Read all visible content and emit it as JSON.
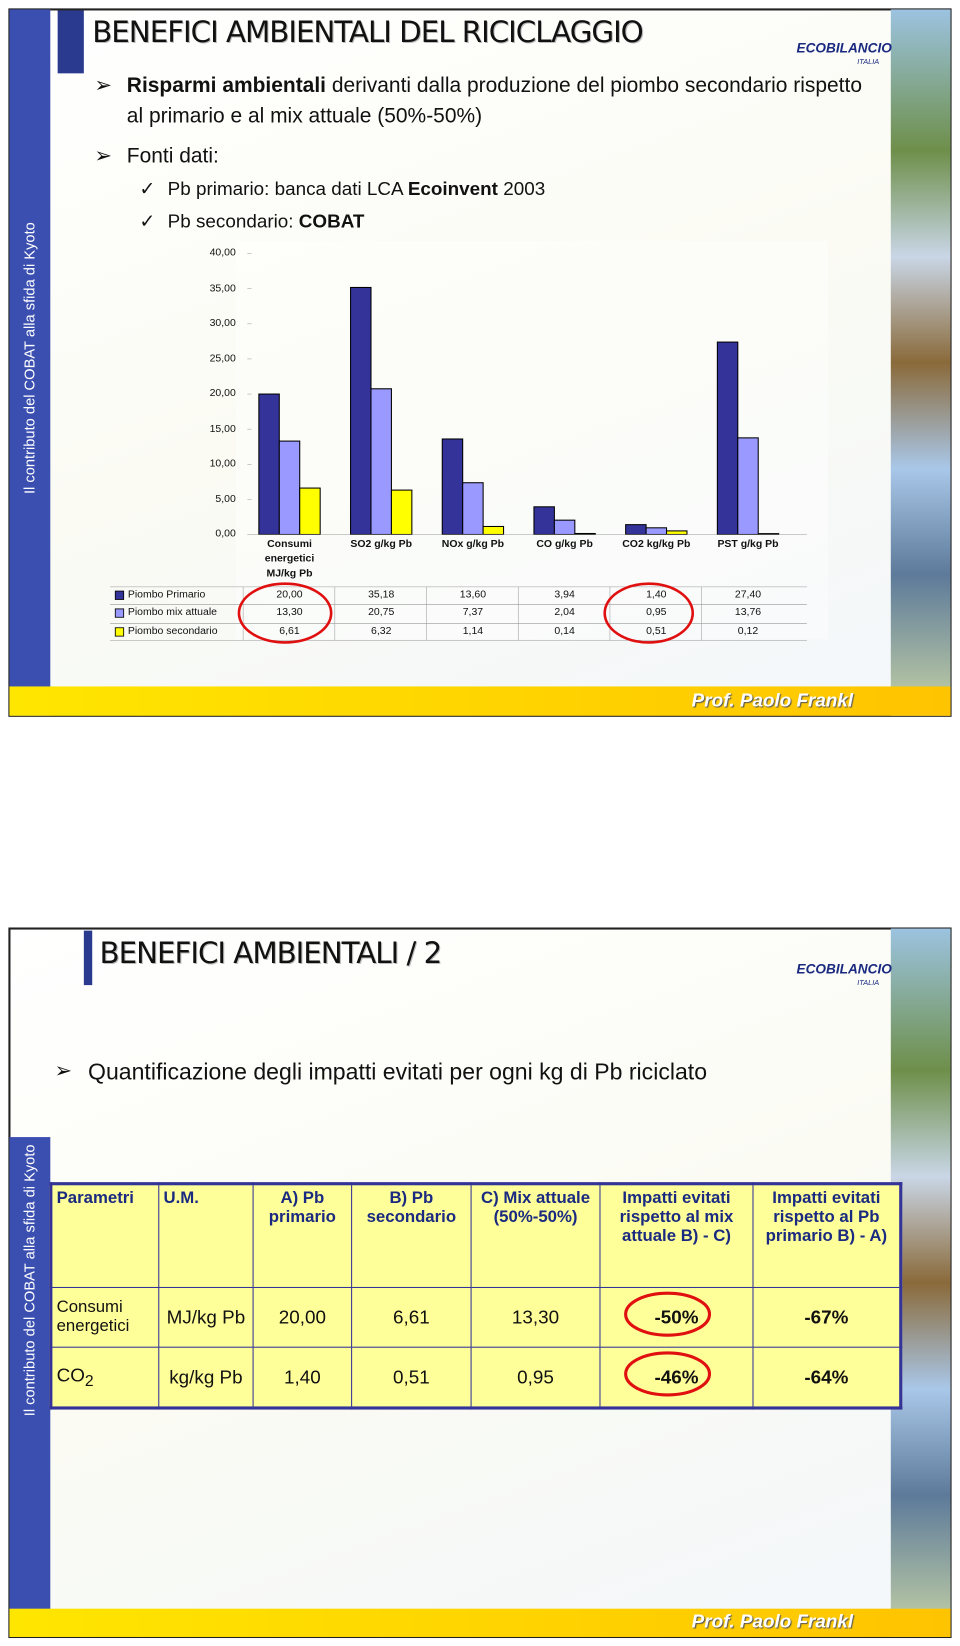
{
  "slide1": {
    "title": "BENEFICI AMBIENTALI DEL RICICLAGGIO",
    "logo": "ECOBILANCIO",
    "logo_sub": "ITALIA",
    "side_text": "Il contributo del COBAT alla sfida di Kyoto",
    "bullet1_bold": "Risparmi ambientali",
    "bullet1_rest": "derivanti dalla produzione del piombo secondario rispetto al primario e al mix attuale (50%-50%)",
    "bullet2": "Fonti dati:",
    "sub1_text": "Pb primario: banca dati LCA",
    "sub1_bold": "Ecoinvent",
    "sub1_end": "2003",
    "sub2_text": "Pb secondario:",
    "sub2_bold": "COBAT",
    "footer": "Prof. Paolo Frankl"
  },
  "chart_data": {
    "type": "bar",
    "categories": [
      "Consumi energetici MJ/kg Pb",
      "SO2 g/kg Pb",
      "NOx g/kg Pb",
      "CO g/kg Pb",
      "CO2 kg/kg Pb",
      "PST g/kg Pb"
    ],
    "series": [
      {
        "name": "Piombo Primario",
        "color": "#333399",
        "values": [
          20,
          35.18,
          13.6,
          3.94,
          1.4,
          27.4
        ],
        "value_labels": [
          "20,00",
          "35,18",
          "13,60",
          "3,94",
          "1,40",
          "27,40"
        ]
      },
      {
        "name": "Piombo mix attuale",
        "color": "#9999ff",
        "values": [
          13.3,
          20.75,
          7.37,
          2.04,
          0.95,
          13.76
        ],
        "value_labels": [
          "13,30",
          "20,75",
          "7,37",
          "2,04",
          "0,95",
          "13,76"
        ]
      },
      {
        "name": "Piombo secondario",
        "color": "#ffff00",
        "values": [
          6.61,
          6.32,
          1.14,
          0.14,
          0.51,
          0.12
        ],
        "value_labels": [
          "6,61",
          "6,32",
          "1,14",
          "0,14",
          "0,51",
          "0,12"
        ]
      }
    ],
    "ylim": [
      0,
      40
    ],
    "yticks": [
      {
        "value": 0,
        "label": "0,00"
      },
      {
        "value": 5,
        "label": "5,00"
      },
      {
        "value": 10,
        "label": "10,00"
      },
      {
        "value": 15,
        "label": "15,00"
      },
      {
        "value": 20,
        "label": "20,00"
      },
      {
        "value": 25,
        "label": "25,00"
      },
      {
        "value": 30,
        "label": "30,00"
      },
      {
        "value": 35,
        "label": "35,00"
      },
      {
        "value": 40,
        "label": "40,00"
      }
    ],
    "grid": false
  },
  "slide2": {
    "title": "BENEFICI AMBIENTALI / 2",
    "logo": "ECOBILANCIO",
    "logo_sub": "ITALIA",
    "side_text": "Il contributo del COBAT alla sfida di Kyoto",
    "bullet": "Quantificazione degli impatti evitati per ogni kg di Pb riciclato",
    "table": {
      "header": [
        "Parametri",
        "U.M.",
        "A) Pb primario",
        "B) Pb secondario",
        "C) Mix attuale (50%-50%)",
        "Impatti evitati rispetto al mix attuale B) - C)",
        "Impatti evitati rispetto al Pb primario B) - A)"
      ],
      "rows": [
        [
          {
            "text": "Consumi energetici"
          },
          "MJ/kg Pb",
          "20,00",
          "6,61",
          "13,30",
          "-50%",
          "-67%"
        ],
        [
          {
            "text": "CO",
            "sub": "2"
          },
          "kg/kg Pb",
          "1,40",
          "0,51",
          "0,95",
          "-46%",
          "-64%"
        ]
      ]
    },
    "footer": "Prof. Paolo Frankl"
  }
}
